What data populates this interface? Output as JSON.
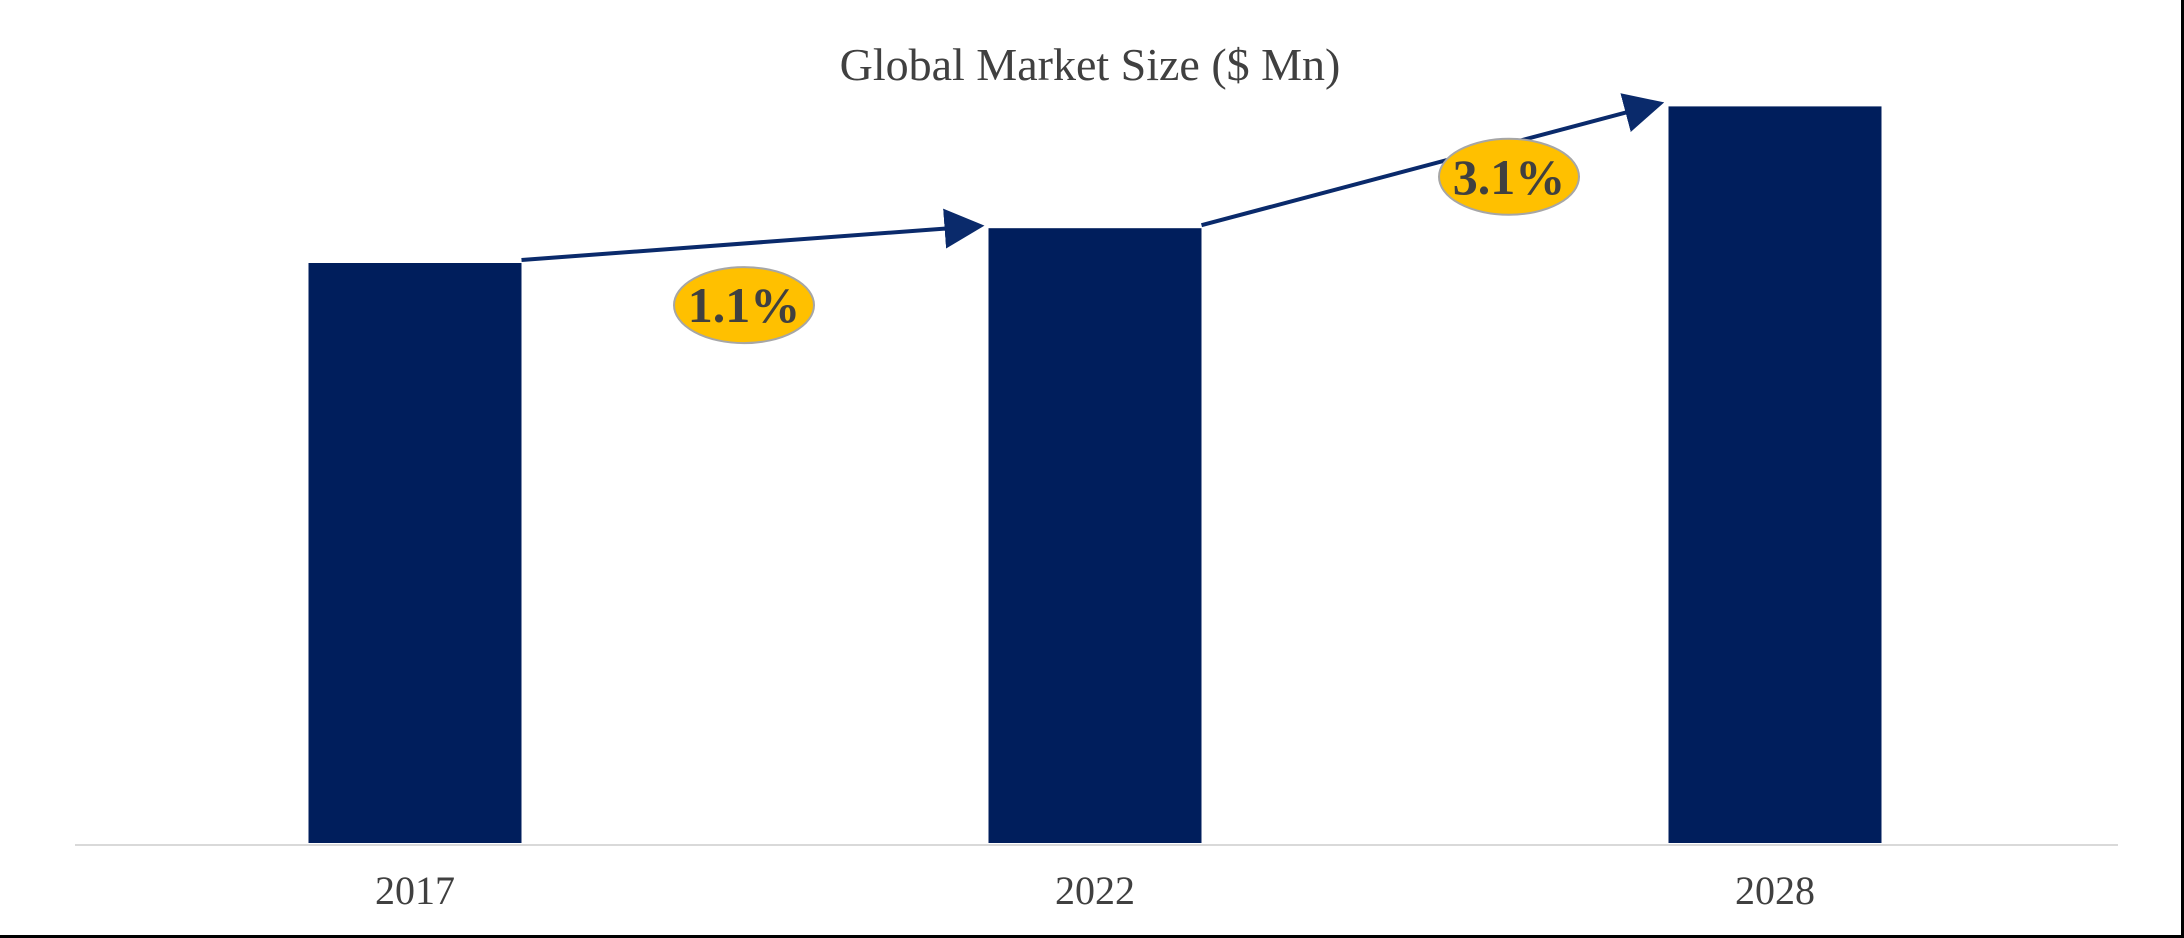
{
  "chart_data": {
    "type": "bar",
    "title": "Global Market Size ($ Mn)",
    "xlabel": "",
    "ylabel": "",
    "categories": [
      "2017",
      "2022",
      "2028"
    ],
    "values": [
      100,
      106,
      127
    ],
    "ylim": [
      0,
      135
    ],
    "grid": false,
    "legend": "none",
    "annotations": [
      {
        "from": "2017",
        "to": "2022",
        "label": "1.1%"
      },
      {
        "from": "2022",
        "to": "2028",
        "label": "3.1%"
      }
    ],
    "colors": {
      "bar": "#001E5C",
      "arrow": "#0A2A6B",
      "badge_fill": "#FFC000",
      "badge_stroke": "#A6A6A6",
      "text": "#404040",
      "axis": "#D9D9D9"
    }
  }
}
